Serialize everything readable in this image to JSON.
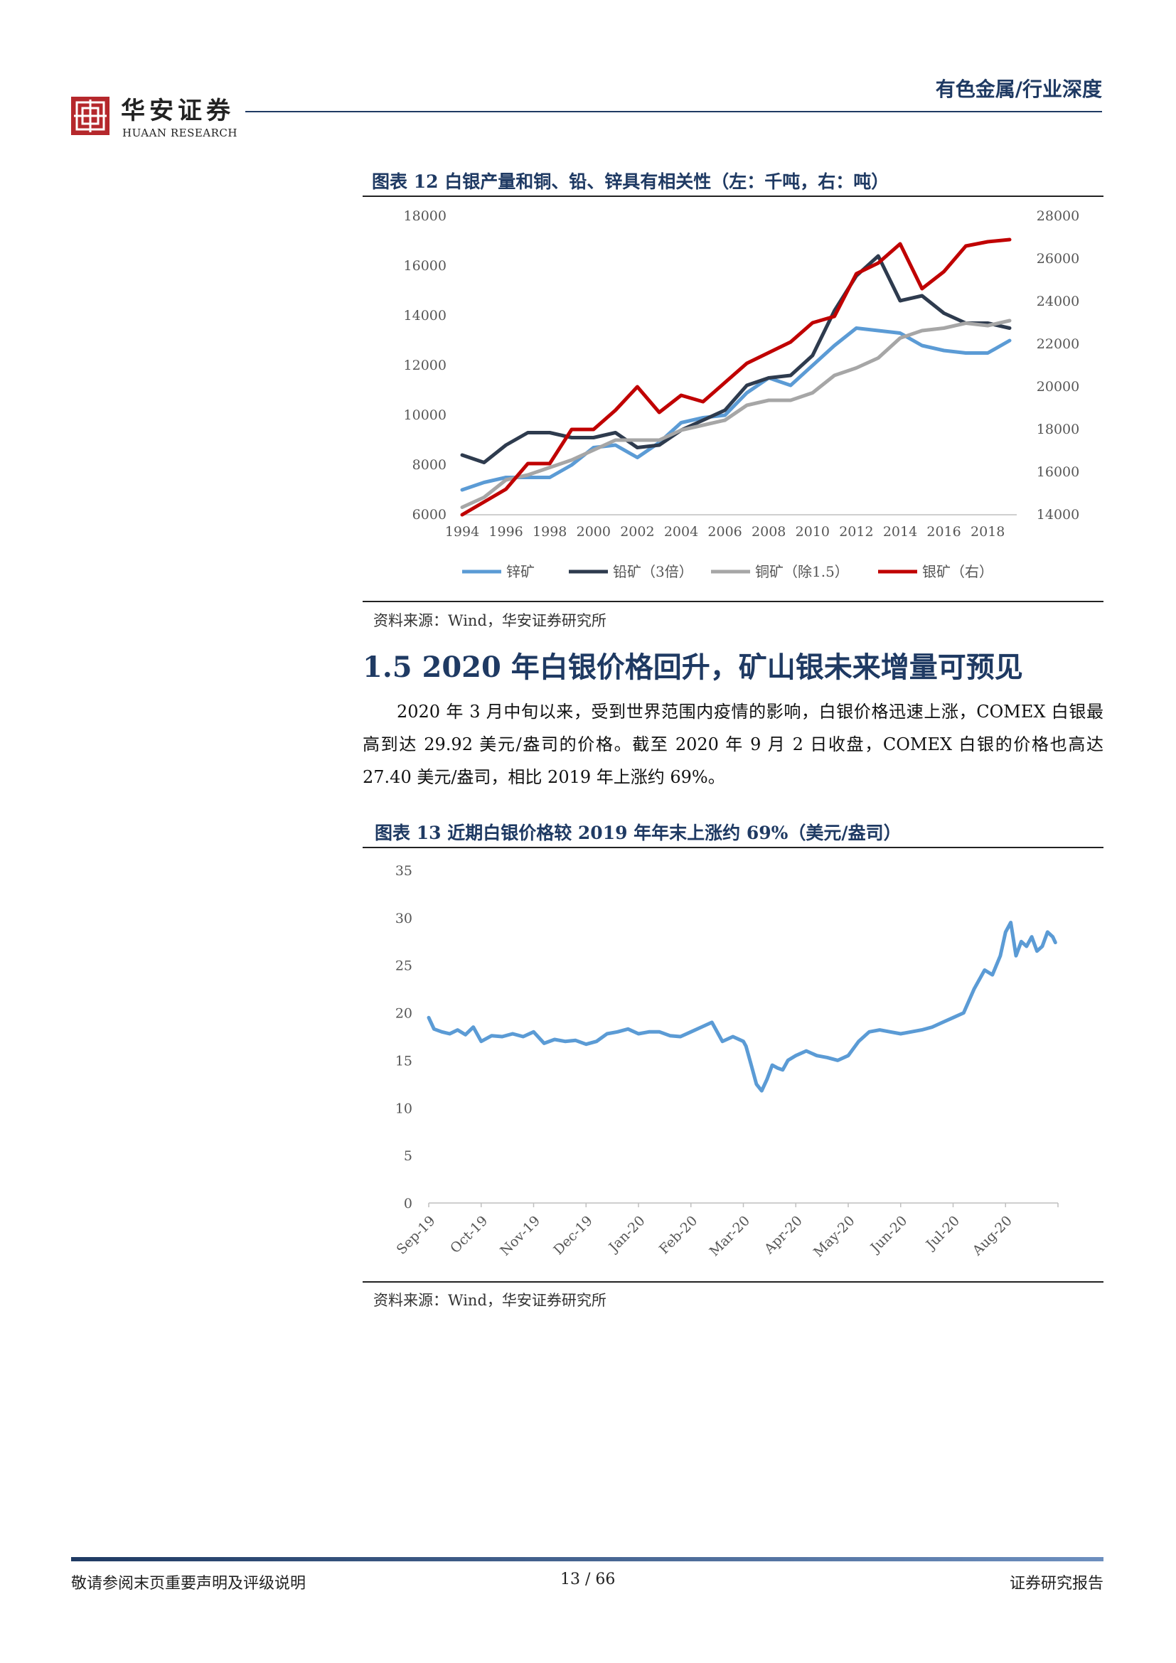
{
  "header": {
    "logo_cn": "华安证券",
    "logo_en": "HUAAN RESEARCH",
    "category": "有色金属/行业深度"
  },
  "figure12": {
    "title": "图表 12 白银产量和铜、铅、锌具有相关性（左：千吨，右：吨）",
    "source": "资料来源：Wind，华安证券研究所"
  },
  "section": {
    "heading": "1.5 2020 年白银价格回升，矿山银未来增量可预见",
    "paragraph": "2020 年 3 月中旬以来，受到世界范围内疫情的影响，白银价格迅速上涨，COMEX 白银最高到达 29.92 美元/盎司的价格。截至 2020 年 9 月 2 日收盘，COMEX 白银的价格也高达 27.40 美元/盎司，相比 2019 年上涨约 69%。"
  },
  "figure13": {
    "title": "图表 13 近期白银价格较 2019 年年末上涨约 69%（美元/盎司）",
    "source": "资料来源：Wind，华安证券研究所"
  },
  "footer": {
    "left": "敬请参阅末页重要声明及评级说明",
    "page": "13 / 66",
    "right": "证券研究报告"
  },
  "chart_data": [
    {
      "type": "line",
      "title": "",
      "x": [
        1994,
        1995,
        1996,
        1997,
        1998,
        1999,
        2000,
        2001,
        2002,
        2003,
        2004,
        2005,
        2006,
        2007,
        2008,
        2009,
        2010,
        2011,
        2012,
        2013,
        2014,
        2015,
        2016,
        2017,
        2018,
        2019
      ],
      "x_ticks": [
        1994,
        1996,
        1998,
        2000,
        2002,
        2004,
        2006,
        2008,
        2010,
        2012,
        2014,
        2016,
        2018
      ],
      "ylim_left": [
        6000,
        18000
      ],
      "y_ticks_left": [
        6000,
        8000,
        10000,
        12000,
        14000,
        16000,
        18000
      ],
      "ylim_right": [
        14000,
        28000
      ],
      "y_ticks_right": [
        14000,
        16000,
        18000,
        20000,
        22000,
        24000,
        26000,
        28000
      ],
      "grid": false,
      "legend_position": "bottom",
      "series": [
        {
          "name": "锌矿",
          "axis": "left",
          "color": "#5b9bd5",
          "values": [
            7000,
            7300,
            7500,
            7500,
            7500,
            8000,
            8700,
            8800,
            8300,
            8900,
            9700,
            9900,
            10000,
            10900,
            11500,
            11200,
            12000,
            12800,
            13500,
            13400,
            13300,
            12800,
            12600,
            12500,
            12500,
            13000
          ]
        },
        {
          "name": "铅矿（3倍）",
          "axis": "left",
          "color": "#2e3b4e",
          "values": [
            8400,
            8100,
            8800,
            9300,
            9300,
            9100,
            9100,
            9300,
            8700,
            8800,
            9400,
            9800,
            10200,
            11200,
            11500,
            11600,
            12400,
            14200,
            15600,
            16400,
            14600,
            14800,
            14100,
            13700,
            13700,
            13500
          ]
        },
        {
          "name": "铜矿（除1.5）",
          "axis": "left",
          "color": "#a6a6a6",
          "values": [
            6300,
            6700,
            7400,
            7600,
            7900,
            8200,
            8600,
            9000,
            9000,
            9000,
            9400,
            9600,
            9800,
            10400,
            10600,
            10600,
            10900,
            11600,
            11900,
            12300,
            13100,
            13400,
            13500,
            13700,
            13600,
            13800
          ]
        },
        {
          "name": "银矿（右）",
          "axis": "right",
          "color": "#c00000",
          "values": [
            14000,
            14600,
            15200,
            16400,
            16400,
            18000,
            18000,
            18900,
            20000,
            18800,
            19600,
            19300,
            20200,
            21100,
            21600,
            22100,
            23000,
            23300,
            25300,
            25800,
            26700,
            24600,
            25400,
            26600,
            26800,
            26900
          ]
        }
      ]
    },
    {
      "type": "line",
      "title": "",
      "x_ticks": [
        "Sep-19",
        "Oct-19",
        "Nov-19",
        "Dec-19",
        "Jan-20",
        "Feb-20",
        "Mar-20",
        "Apr-20",
        "May-20",
        "Jun-20",
        "Jul-20",
        "Aug-20"
      ],
      "ylim": [
        0,
        35
      ],
      "y_ticks": [
        0,
        5,
        10,
        15,
        20,
        25,
        30,
        35
      ],
      "grid": false,
      "series": [
        {
          "name": "",
          "color": "#5b9bd5",
          "x": [
            0,
            0.1,
            0.25,
            0.4,
            0.55,
            0.7,
            0.85,
            1.0,
            1.2,
            1.4,
            1.6,
            1.8,
            2.0,
            2.2,
            2.4,
            2.6,
            2.8,
            3.0,
            3.2,
            3.4,
            3.6,
            3.8,
            4.0,
            4.2,
            4.4,
            4.6,
            4.8,
            5.0,
            5.2,
            5.4,
            5.6,
            5.8,
            6.0,
            6.05,
            6.15,
            6.25,
            6.35,
            6.45,
            6.55,
            6.65,
            6.75,
            6.85,
            7.0,
            7.2,
            7.4,
            7.6,
            7.8,
            8.0,
            8.2,
            8.4,
            8.6,
            8.8,
            9.0,
            9.2,
            9.4,
            9.6,
            9.8,
            10.0,
            10.2,
            10.4,
            10.6,
            10.75,
            10.9,
            11.0,
            11.1,
            11.2,
            11.3,
            11.4,
            11.5,
            11.6,
            11.7,
            11.8,
            11.9,
            11.95
          ],
          "values": [
            19.5,
            18.3,
            18.0,
            17.8,
            18.2,
            17.7,
            18.5,
            17.0,
            17.6,
            17.5,
            17.8,
            17.5,
            18.0,
            16.8,
            17.2,
            17.0,
            17.1,
            16.7,
            17.0,
            17.8,
            18.0,
            18.3,
            17.8,
            18.0,
            18.0,
            17.6,
            17.5,
            18.0,
            18.5,
            19.0,
            17.0,
            17.5,
            17.0,
            16.5,
            14.5,
            12.5,
            11.8,
            13.0,
            14.5,
            14.2,
            14.0,
            15.0,
            15.5,
            16.0,
            15.5,
            15.3,
            15.0,
            15.5,
            17.0,
            18.0,
            18.2,
            18.0,
            17.8,
            18.0,
            18.2,
            18.5,
            19.0,
            19.5,
            20.0,
            22.5,
            24.5,
            24.0,
            26.0,
            28.5,
            29.5,
            26.0,
            27.5,
            27.0,
            28.0,
            26.5,
            27.0,
            28.5,
            28.0,
            27.4
          ]
        }
      ]
    }
  ]
}
